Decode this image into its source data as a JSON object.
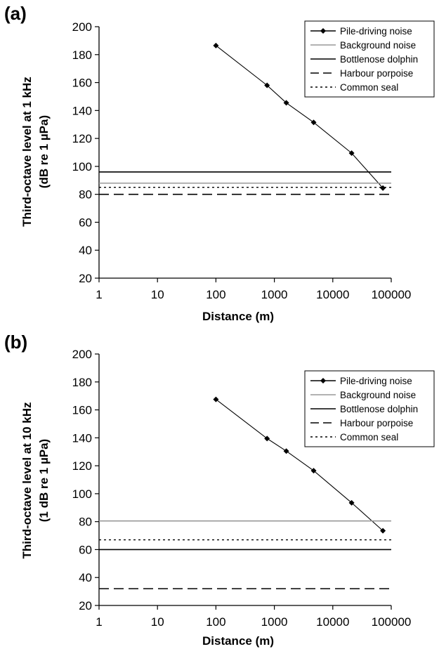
{
  "chart_data": [
    {
      "type": "line",
      "panel_label": "(a)",
      "xlabel": "Distance (m)",
      "ylabel_line1": "Third-octave level at 1 kHz",
      "ylabel_line2": "(dB re 1 µPa)",
      "x_scale": "log",
      "xlim": [
        1,
        100000
      ],
      "ylim": [
        20,
        200
      ],
      "x_ticks": [
        1,
        10,
        100,
        1000,
        10000,
        100000
      ],
      "x_tick_labels": [
        "1",
        "10",
        "100",
        "1000",
        "10000",
        "100000"
      ],
      "y_ticks": [
        20,
        40,
        60,
        80,
        100,
        120,
        140,
        160,
        180,
        200
      ],
      "y_tick_labels": [
        "20",
        "40",
        "60",
        "80",
        "100",
        "120",
        "140",
        "160",
        "180",
        "200"
      ],
      "legend_position": "top-right",
      "grid": false,
      "series": [
        {
          "name": "Pile-driving noise",
          "style": "line-marker",
          "color": "#000000",
          "x": [
            100,
            750,
            1600,
            4700,
            21000,
            72000
          ],
          "y": [
            186.5,
            158,
            145.5,
            131.5,
            109.5,
            84.5
          ]
        },
        {
          "name": "Background noise",
          "style": "solid",
          "color": "#999999",
          "y_const": 88
        },
        {
          "name": "Bottlenose dolphin",
          "style": "solid",
          "color": "#000000",
          "y_const": 96
        },
        {
          "name": "Harbour porpoise",
          "style": "dashed",
          "color": "#000000",
          "y_const": 80
        },
        {
          "name": "Common seal",
          "style": "dotted",
          "color": "#000000",
          "y_const": 85
        }
      ]
    },
    {
      "type": "line",
      "panel_label": "(b)",
      "xlabel": "Distance (m)",
      "ylabel_line1": "Third-octave level at 10 kHz",
      "ylabel_line2": "(1 dB re 1 µPa)",
      "x_scale": "log",
      "xlim": [
        1,
        100000
      ],
      "ylim": [
        20,
        200
      ],
      "x_ticks": [
        1,
        10,
        100,
        1000,
        10000,
        100000
      ],
      "x_tick_labels": [
        "1",
        "10",
        "100",
        "1000",
        "10000",
        "100000"
      ],
      "y_ticks": [
        20,
        40,
        60,
        80,
        100,
        120,
        140,
        160,
        180,
        200
      ],
      "y_tick_labels": [
        "20",
        "40",
        "60",
        "80",
        "100",
        "120",
        "140",
        "160",
        "180",
        "200"
      ],
      "legend_position": "top-right",
      "grid": false,
      "series": [
        {
          "name": "Pile-driving noise",
          "style": "line-marker",
          "color": "#000000",
          "x": [
            100,
            750,
            1600,
            4700,
            21000,
            72000
          ],
          "y": [
            167.5,
            139.5,
            130.5,
            116.5,
            93.5,
            73.5
          ]
        },
        {
          "name": "Background noise",
          "style": "solid",
          "color": "#999999",
          "y_const": 80.5
        },
        {
          "name": "Bottlenose dolphin",
          "style": "solid",
          "color": "#000000",
          "y_const": 60
        },
        {
          "name": "Harbour porpoise",
          "style": "dashed",
          "color": "#000000",
          "y_const": 32
        },
        {
          "name": "Common seal",
          "style": "dotted",
          "color": "#000000",
          "y_const": 67
        }
      ]
    }
  ]
}
